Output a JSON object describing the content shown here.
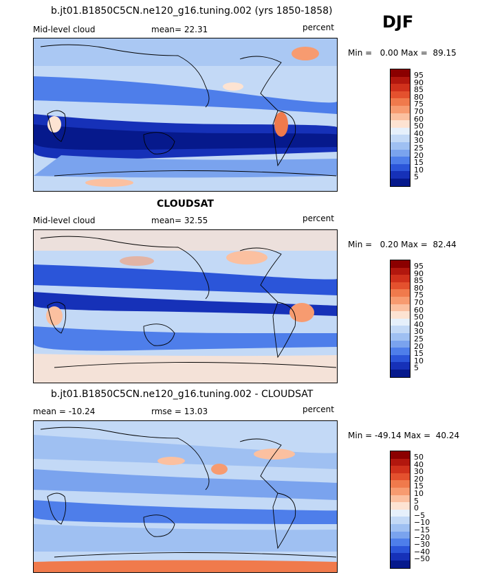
{
  "season": "DJF",
  "panels": [
    {
      "title": "b.jt01.B1850C5CN.ne120_g16.tuning.002 (yrs 1850-1858)",
      "left_label": "Mid-level cloud",
      "stat_label": "mean=  22.31",
      "units": "percent",
      "minmax": "Min =   0.00 Max =  89.15",
      "ticks": [
        "95",
        "90",
        "85",
        "80",
        "75",
        "70",
        "60",
        "50",
        "40",
        "30",
        "25",
        "20",
        "15",
        "10",
        "5"
      ]
    },
    {
      "title": "CLOUDSAT",
      "left_label": "Mid-level cloud",
      "stat_label": "mean=  32.55",
      "units": "percent",
      "minmax": "Min =   0.20 Max =  82.44",
      "ticks": [
        "95",
        "90",
        "85",
        "80",
        "75",
        "70",
        "60",
        "50",
        "40",
        "30",
        "25",
        "20",
        "15",
        "10",
        "5"
      ]
    },
    {
      "title": "b.jt01.B1850C5CN.ne120_g16.tuning.002 - CLOUDSAT",
      "left_label": "mean = -10.24",
      "stat_label": "rmse =  13.03",
      "units": "percent",
      "minmax": "Min = -49.14 Max =  40.24",
      "ticks": [
        "50",
        "40",
        "30",
        "20",
        "15",
        "10",
        "5",
        "0",
        "−5",
        "−10",
        "−15",
        "−20",
        "−30",
        "−40",
        "−50"
      ]
    }
  ],
  "colors": {
    "scale": [
      "#8b0000",
      "#b2170e",
      "#d0311c",
      "#e4512e",
      "#f07a4c",
      "#f79b70",
      "#fbc0a0",
      "#fde3d2",
      "#e6f0fb",
      "#c3d9f6",
      "#9fc0f2",
      "#7aa3ee",
      "#4e7eea",
      "#2b55d9",
      "#1631b8",
      "#06198c"
    ]
  }
}
